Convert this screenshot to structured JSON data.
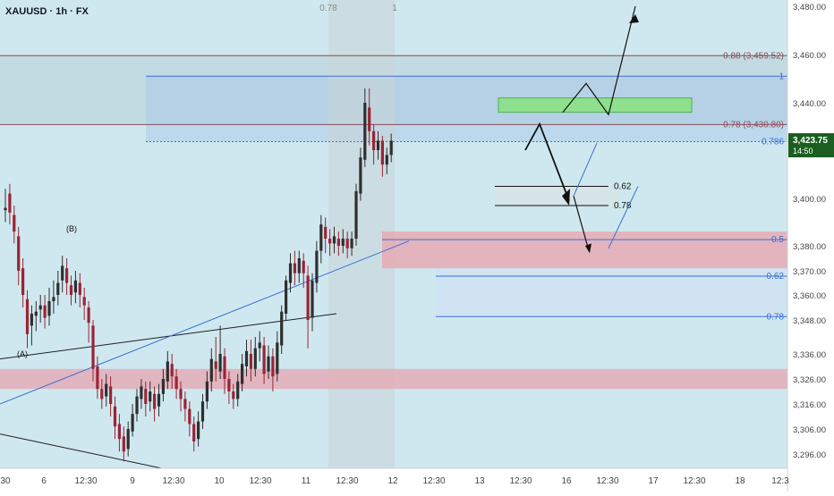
{
  "header": {
    "symbol_label": "XAUUSD · 1h · FX"
  },
  "colors": {
    "plot_bg": "#cfe8ef",
    "axis_bg": "#ffffff",
    "bull": "#2f2f2f",
    "bear": "#9b2336",
    "fib_blue": "#3b6fd6",
    "fib_brown": "#8a4b55",
    "pink_zone": "#e7a6b0",
    "green_zone": "#8ee08e",
    "price_tag": "#1b5e20",
    "trend": "#1f1f1f"
  },
  "chart_data": {
    "type": "candlestick",
    "symbol": "XAUUSD",
    "timeframe": "1h",
    "exchange": "FX",
    "ylim": [
      3288,
      3485
    ],
    "y_ticks": [
      3296,
      3306,
      3316,
      3326,
      3336,
      3348,
      3360,
      3370,
      3380,
      3400,
      3420,
      3440,
      3460,
      3480
    ],
    "y_tick_labels": [
      "3,296.00",
      "3,306.00",
      "3,316.00",
      "3,326.00",
      "3,336.00",
      "3,348.00",
      "3,360.00",
      "3,370.00",
      "3,380.00",
      "3,400.00",
      "3,420.00",
      "3,440.00",
      "3,460.00",
      "3,480.00"
    ],
    "x_ticks": [
      "30",
      "6",
      "12:30",
      "9",
      "12:30",
      "10",
      "12:30",
      "11",
      "12:30",
      "12",
      "12:30",
      "13",
      "12:30",
      "16",
      "12:30",
      "17",
      "12:30",
      "18",
      "12:3"
    ],
    "x_top_markers": [
      "0.78",
      "1"
    ],
    "current_price": {
      "label": "3,423.75",
      "countdown": "14:50",
      "value": 3423.75
    },
    "fib_levels": [
      {
        "label": "0.88 (3,459.52)",
        "value": 3459.52,
        "color": "brown"
      },
      {
        "label": "1",
        "value": 3451,
        "color": "blue"
      },
      {
        "label": "0.78 (3,430.80)",
        "value": 3430.8,
        "color": "brown"
      },
      {
        "label": "0.786",
        "value": 3423.6,
        "color": "blue"
      },
      {
        "label": "0.5",
        "value": 3382.6,
        "color": "blue"
      },
      {
        "label": "0.62",
        "value": 3367.8,
        "color": "blue"
      },
      {
        "label": "0.78",
        "value": 3349.6,
        "color": "blue"
      }
    ],
    "local_levels": [
      {
        "label": "0.62",
        "value": 3405
      },
      {
        "label": "0.78",
        "value": 3397
      }
    ],
    "wave_labels": [
      "(B)",
      "(A)"
    ],
    "candles": [
      [
        3395,
        3396,
        3390,
        3404
      ],
      [
        3402,
        3394,
        3389,
        3406
      ],
      [
        3393,
        3386,
        3381,
        3397
      ],
      [
        3384,
        3370,
        3364,
        3388
      ],
      [
        3371,
        3360,
        3354,
        3375
      ],
      [
        3358,
        3343,
        3338,
        3362
      ],
      [
        3346,
        3351,
        3339,
        3355
      ],
      [
        3350,
        3352,
        3344,
        3357
      ],
      [
        3353,
        3355,
        3347,
        3360
      ],
      [
        3355,
        3349,
        3345,
        3360
      ],
      [
        3350,
        3357,
        3346,
        3363
      ],
      [
        3357,
        3359,
        3351,
        3366
      ],
      [
        3360,
        3365,
        3355,
        3370
      ],
      [
        3366,
        3372,
        3361,
        3376
      ],
      [
        3371,
        3365,
        3360,
        3375
      ],
      [
        3364,
        3360,
        3355,
        3368
      ],
      [
        3361,
        3366,
        3356,
        3370
      ],
      [
        3365,
        3360,
        3354,
        3369
      ],
      [
        3359,
        3355,
        3348,
        3363
      ],
      [
        3354,
        3347,
        3340,
        3357
      ],
      [
        3346,
        3330,
        3325,
        3348
      ],
      [
        3331,
        3322,
        3318,
        3335
      ],
      [
        3322,
        3318,
        3314,
        3326
      ],
      [
        3319,
        3324,
        3315,
        3328
      ],
      [
        3323,
        3316,
        3311,
        3327
      ],
      [
        3315,
        3307,
        3302,
        3319
      ],
      [
        3308,
        3302,
        3297,
        3312
      ],
      [
        3303,
        3297,
        3293,
        3307
      ],
      [
        3298,
        3306,
        3295,
        3309
      ],
      [
        3305,
        3312,
        3303,
        3316
      ],
      [
        3312,
        3319,
        3309,
        3322
      ],
      [
        3318,
        3323,
        3314,
        3326
      ],
      [
        3322,
        3316,
        3311,
        3325
      ],
      [
        3317,
        3321,
        3313,
        3325
      ],
      [
        3320,
        3314,
        3309,
        3323
      ],
      [
        3315,
        3320,
        3311,
        3324
      ],
      [
        3320,
        3326,
        3317,
        3330
      ],
      [
        3325,
        3333,
        3322,
        3337
      ],
      [
        3332,
        3327,
        3322,
        3336
      ],
      [
        3327,
        3322,
        3318,
        3330
      ],
      [
        3322,
        3318,
        3313,
        3325
      ],
      [
        3318,
        3314,
        3309,
        3321
      ],
      [
        3314,
        3308,
        3303,
        3317
      ],
      [
        3308,
        3301,
        3297,
        3311
      ],
      [
        3302,
        3309,
        3299,
        3313
      ],
      [
        3309,
        3317,
        3306,
        3320
      ],
      [
        3317,
        3325,
        3314,
        3329
      ],
      [
        3325,
        3334,
        3321,
        3338
      ],
      [
        3333,
        3330,
        3325,
        3342
      ],
      [
        3329,
        3336,
        3326,
        3346
      ],
      [
        3335,
        3326,
        3320,
        3338
      ],
      [
        3326,
        3321,
        3316,
        3329
      ],
      [
        3321,
        3318,
        3314,
        3324
      ],
      [
        3318,
        3325,
        3315,
        3328
      ],
      [
        3324,
        3332,
        3321,
        3336
      ],
      [
        3331,
        3337,
        3327,
        3341
      ],
      [
        3336,
        3330,
        3325,
        3341
      ],
      [
        3330,
        3338,
        3327,
        3342
      ],
      [
        3338,
        3340,
        3333,
        3344
      ],
      [
        3339,
        3328,
        3324,
        3342
      ],
      [
        3329,
        3335,
        3326,
        3339
      ],
      [
        3335,
        3327,
        3321,
        3338
      ],
      [
        3328,
        3340,
        3325,
        3344
      ],
      [
        3339,
        3352,
        3336,
        3355
      ],
      [
        3351,
        3366,
        3348,
        3368
      ],
      [
        3365,
        3373,
        3361,
        3377
      ],
      [
        3373,
        3369,
        3364,
        3378
      ],
      [
        3369,
        3375,
        3365,
        3378
      ],
      [
        3374,
        3369,
        3363,
        3377
      ],
      [
        3368,
        3348,
        3338,
        3372
      ],
      [
        3349,
        3366,
        3344,
        3369
      ],
      [
        3365,
        3378,
        3361,
        3382
      ],
      [
        3378,
        3389,
        3373,
        3393
      ],
      [
        3388,
        3383,
        3377,
        3392
      ],
      [
        3383,
        3381,
        3376,
        3387
      ],
      [
        3381,
        3384,
        3377,
        3388
      ],
      [
        3383,
        3380,
        3376,
        3386
      ],
      [
        3380,
        3383,
        3377,
        3387
      ],
      [
        3383,
        3379,
        3375,
        3386
      ],
      [
        3379,
        3383,
        3376,
        3386
      ],
      [
        3383,
        3403,
        3380,
        3406
      ],
      [
        3402,
        3417,
        3399,
        3421
      ],
      [
        3416,
        3440,
        3413,
        3446
      ],
      [
        3438,
        3428,
        3422,
        3446
      ],
      [
        3428,
        3420,
        3414,
        3431
      ],
      [
        3420,
        3424,
        3416,
        3428
      ],
      [
        3424,
        3414,
        3409,
        3426
      ],
      [
        3414,
        3418,
        3410,
        3421
      ],
      [
        3418,
        3424,
        3415,
        3427
      ]
    ]
  }
}
